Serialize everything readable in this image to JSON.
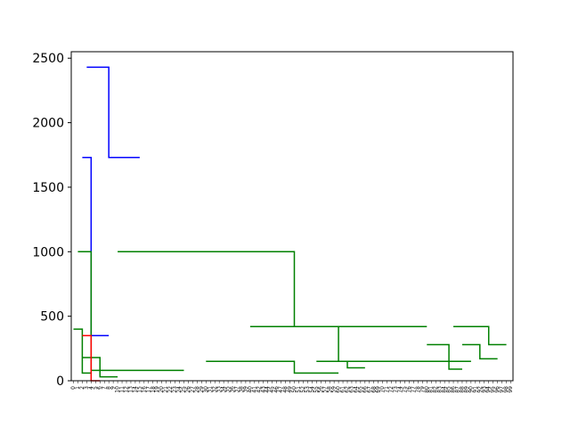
{
  "chart_data": {
    "type": "dendrogram",
    "title": "",
    "xlabel": "",
    "ylabel": "",
    "ylim": [
      0,
      2550
    ],
    "yticks": [
      0,
      500,
      1000,
      1500,
      2000,
      2500
    ],
    "leaf_count": 100,
    "colors": {
      "cluster_a": "#008000",
      "cluster_b": "#ff0000",
      "above_threshold": "#0000ff",
      "axes": "#000000"
    },
    "links": [
      {
        "x": [
          3,
          8,
          8,
          15
        ],
        "y": [
          2430,
          2430,
          1730,
          1730
        ],
        "color": "#0000ff"
      },
      {
        "x": [
          2,
          4,
          4,
          8
        ],
        "y": [
          1730,
          1730,
          350,
          350
        ],
        "color": "#0000ff"
      },
      {
        "x": [
          1,
          4,
          4,
          25
        ],
        "y": [
          1000,
          1000,
          80,
          80
        ],
        "color": "#008000"
      },
      {
        "x": [
          10,
          50,
          50,
          80
        ],
        "y": [
          1000,
          1000,
          420,
          420
        ],
        "color": "#008000"
      },
      {
        "x": [
          40,
          60,
          60,
          90
        ],
        "y": [
          420,
          420,
          150,
          150
        ],
        "color": "#008000"
      },
      {
        "x": [
          86,
          94,
          94,
          98
        ],
        "y": [
          420,
          420,
          280,
          280
        ],
        "color": "#008000"
      },
      {
        "x": [
          0,
          2,
          2,
          4
        ],
        "y": [
          400,
          400,
          60,
          60
        ],
        "color": "#008000"
      },
      {
        "x": [
          2,
          6,
          6,
          10
        ],
        "y": [
          180,
          180,
          30,
          30
        ],
        "color": "#008000"
      },
      {
        "x": [
          30,
          50,
          50,
          60
        ],
        "y": [
          150,
          150,
          60,
          60
        ],
        "color": "#008000"
      },
      {
        "x": [
          55,
          62,
          62,
          66
        ],
        "y": [
          150,
          150,
          100,
          100
        ],
        "color": "#008000"
      },
      {
        "x": [
          80,
          85,
          85,
          88
        ],
        "y": [
          280,
          280,
          90,
          90
        ],
        "color": "#008000"
      },
      {
        "x": [
          88,
          92,
          92,
          96
        ],
        "y": [
          280,
          280,
          170,
          170
        ],
        "color": "#008000"
      },
      {
        "x": [
          2,
          4,
          4,
          6
        ],
        "y": [
          350,
          350,
          0,
          0
        ],
        "color": "#ff0000"
      }
    ],
    "leaves": [
      "0",
      "1",
      "2",
      "3",
      "4",
      "5",
      "6",
      "7",
      "8",
      "9",
      "10",
      "11",
      "12",
      "13",
      "14",
      "15",
      "16",
      "17",
      "18",
      "19",
      "20",
      "21",
      "22",
      "23",
      "24",
      "25",
      "26",
      "27",
      "28",
      "29",
      "30",
      "31",
      "32",
      "33",
      "34",
      "35",
      "36",
      "37",
      "38",
      "39",
      "40",
      "41",
      "42",
      "43",
      "44",
      "45",
      "46",
      "47",
      "48",
      "49",
      "50",
      "51",
      "52",
      "53",
      "54",
      "55",
      "56",
      "57",
      "58",
      "59",
      "60",
      "61",
      "62",
      "63",
      "64",
      "65",
      "66",
      "67",
      "68",
      "69",
      "70",
      "71",
      "72",
      "73",
      "74",
      "75",
      "76",
      "77",
      "78",
      "79",
      "80",
      "81",
      "82",
      "83",
      "84",
      "85",
      "86",
      "87",
      "88",
      "89",
      "90",
      "91",
      "92",
      "93",
      "94",
      "95",
      "96",
      "97",
      "98",
      "99"
    ]
  }
}
